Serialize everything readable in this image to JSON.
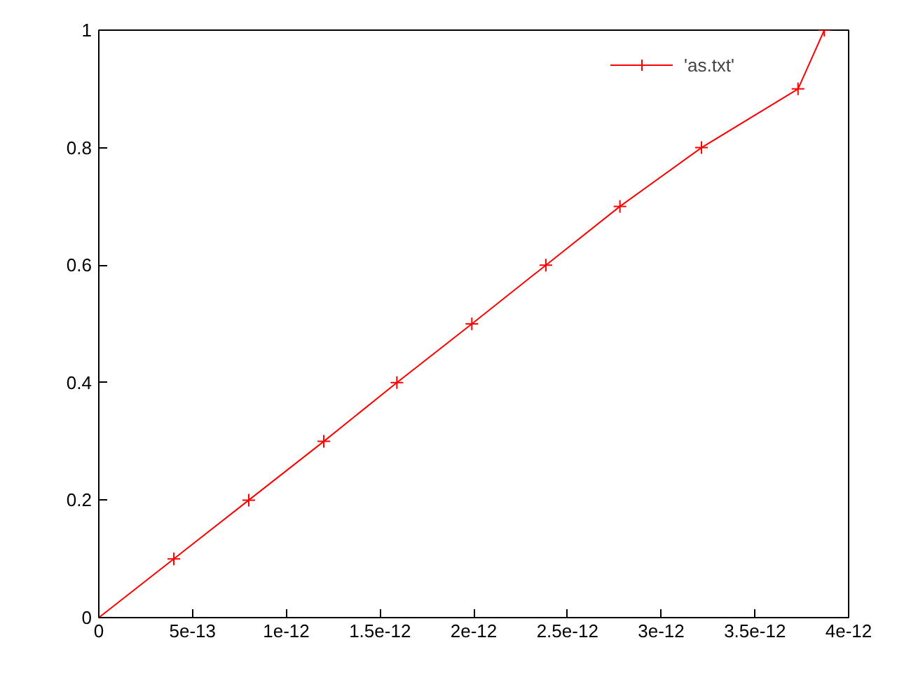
{
  "chart_data": {
    "type": "line",
    "x": [
      0,
      4e-13,
      8e-13,
      1.2e-12,
      1.59e-12,
      1.99e-12,
      2.385e-12,
      2.78e-12,
      3.215e-12,
      3.73e-12,
      3.87e-12
    ],
    "series": [
      {
        "name": "'as.txt'",
        "color": "#ff0000",
        "values": [
          0,
          0.1,
          0.2,
          0.3,
          0.4,
          0.5,
          0.6,
          0.7,
          0.8,
          0.9,
          1.0
        ]
      }
    ],
    "xlim": [
      0,
      4e-12
    ],
    "xticks": [
      0,
      {
        "value": 5e-13,
        "label": "5e-13"
      },
      {
        "value": 1e-12,
        "label": "1e-12"
      },
      {
        "value": 1.5e-12,
        "label": "1.5e-12"
      },
      {
        "value": 2e-12,
        "label": "2e-12"
      },
      {
        "value": 2.5e-12,
        "label": "2.5e-12"
      },
      {
        "value": 3e-12,
        "label": "3e-12"
      },
      {
        "value": 3.5e-12,
        "label": "3.5e-12"
      },
      {
        "value": 4e-12,
        "label": "4e-12"
      }
    ],
    "ylim": [
      0,
      1
    ],
    "yticks": [
      0,
      0.2,
      0.4,
      0.6,
      0.8,
      1
    ],
    "grid": false,
    "legend": "top right",
    "marker": "cross",
    "line_style": "solid"
  }
}
